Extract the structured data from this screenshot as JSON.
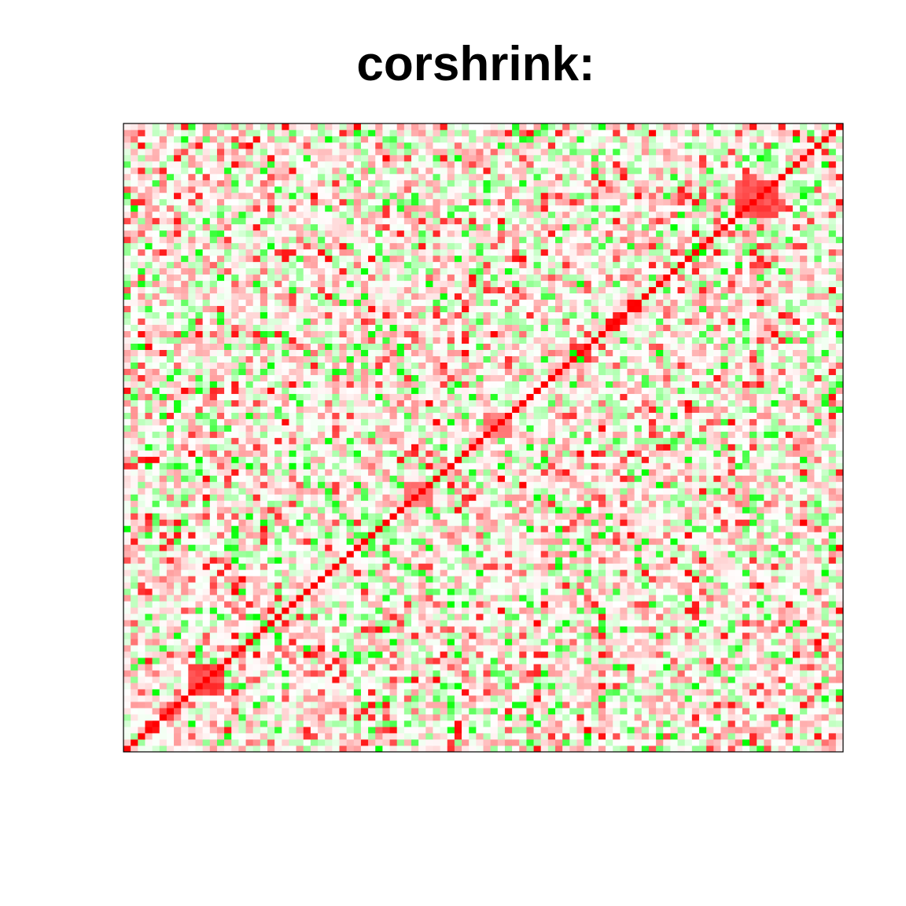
{
  "chart_data": {
    "type": "heatmap",
    "title": "corshrink:",
    "xlabel": "",
    "ylabel": "",
    "n_variables": 100,
    "color_scale": {
      "low": "#00FF00",
      "mid": "#FFFFFF",
      "high": "#FF0000",
      "low_value": -1,
      "high_value": 1
    },
    "diagonal_value": 1,
    "value_range": [
      -1,
      1
    ],
    "axes_shown": false,
    "grid": false,
    "legend": "none",
    "highlight_blocks": [
      {
        "rows": [
          9,
          13
        ],
        "cols": [
          9,
          13
        ],
        "value": 0.75
      },
      {
        "rows": [
          35,
          36
        ],
        "cols": [
          35,
          36
        ],
        "value": -0.55
      },
      {
        "rows": [
          39,
          42
        ],
        "cols": [
          39,
          42
        ],
        "value": 0.55
      },
      {
        "rows": [
          50,
          53
        ],
        "cols": [
          50,
          53
        ],
        "value": 0.55
      },
      {
        "rows": [
          85,
          90
        ],
        "cols": [
          85,
          90
        ],
        "value": 0.7
      }
    ]
  }
}
